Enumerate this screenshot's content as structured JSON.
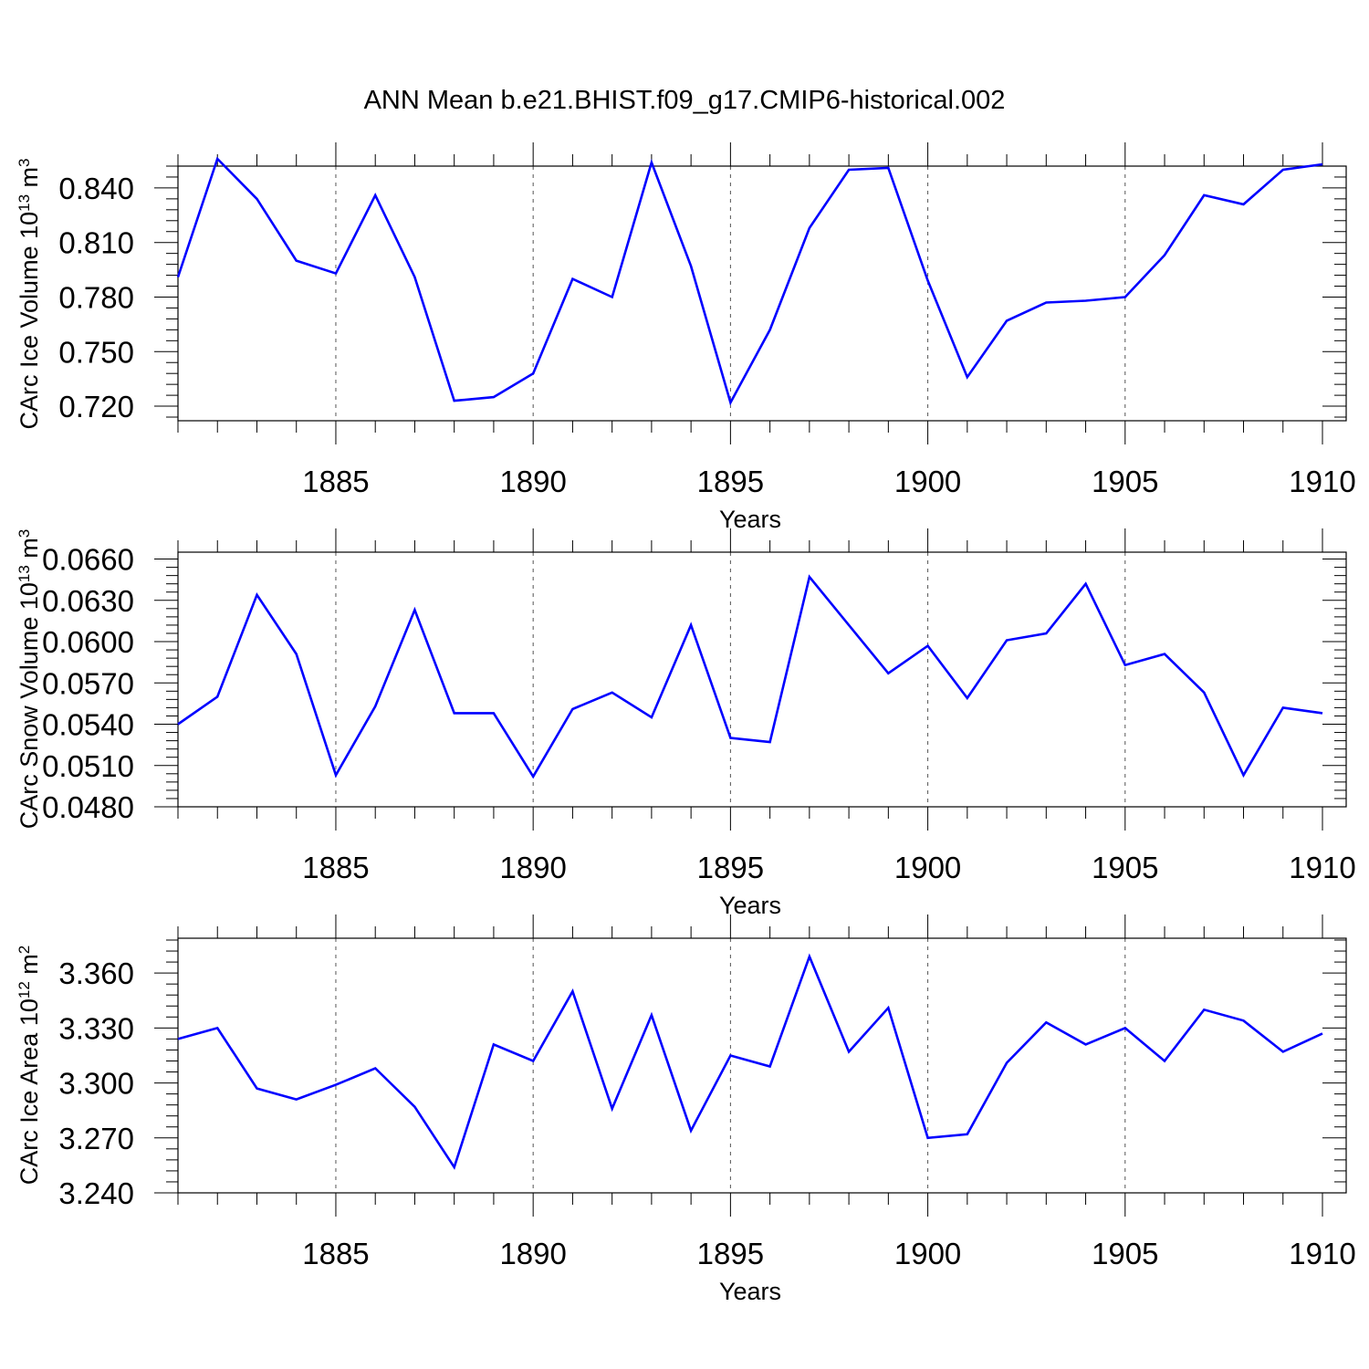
{
  "title": "ANN Mean b.e21.BHIST.f09_g17.CMIP6-historical.002",
  "line_color": "#0000ff",
  "chart_data": [
    {
      "type": "line",
      "ylabel_main": "CArc Ice Volume 10",
      "ylabel_sup": "13",
      "ylabel_unit": " m",
      "ylabel_unit_sup": "3",
      "xlabel": "Years",
      "xlim": [
        1881,
        1910
      ],
      "ylim": [
        0.712,
        0.852
      ],
      "yticks": [
        0.72,
        0.75,
        0.78,
        0.81,
        0.84
      ],
      "ytick_labels": [
        "0.720",
        "0.750",
        "0.780",
        "0.810",
        "0.840"
      ],
      "xticks": [
        1885,
        1890,
        1895,
        1900,
        1905,
        1910
      ],
      "xtick_labels": [
        "1885",
        "1890",
        "1895",
        "1900",
        "1905",
        "1910"
      ],
      "series": [
        {
          "name": "CArc Ice Volume",
          "x": [
            1881,
            1882,
            1883,
            1884,
            1885,
            1886,
            1887,
            1888,
            1889,
            1890,
            1891,
            1892,
            1893,
            1894,
            1895,
            1896,
            1897,
            1898,
            1899,
            1900,
            1901,
            1902,
            1903,
            1904,
            1905,
            1906,
            1907,
            1908,
            1909,
            1910
          ],
          "values": [
            0.791,
            0.856,
            0.834,
            0.8,
            0.793,
            0.836,
            0.791,
            0.723,
            0.725,
            0.738,
            0.79,
            0.78,
            0.854,
            0.797,
            0.722,
            0.762,
            0.818,
            0.85,
            0.851,
            0.789,
            0.736,
            0.767,
            0.777,
            0.778,
            0.78,
            0.803,
            0.836,
            0.831,
            0.85,
            0.853
          ]
        }
      ]
    },
    {
      "type": "line",
      "ylabel_main": "CArc Snow Volume 10",
      "ylabel_sup": "13",
      "ylabel_unit": " m",
      "ylabel_unit_sup": "3",
      "xlabel": "Years",
      "xlim": [
        1881,
        1910
      ],
      "ylim": [
        0.048,
        0.0665
      ],
      "yticks": [
        0.048,
        0.051,
        0.054,
        0.057,
        0.06,
        0.063,
        0.066
      ],
      "ytick_labels": [
        "0.0480",
        "0.0510",
        "0.0540",
        "0.0570",
        "0.0600",
        "0.0630",
        "0.0660"
      ],
      "xticks": [
        1885,
        1890,
        1895,
        1900,
        1905,
        1910
      ],
      "xtick_labels": [
        "1885",
        "1890",
        "1895",
        "1900",
        "1905",
        "1910"
      ],
      "series": [
        {
          "name": "CArc Snow Volume",
          "x": [
            1881,
            1882,
            1883,
            1884,
            1885,
            1886,
            1887,
            1888,
            1889,
            1890,
            1891,
            1892,
            1893,
            1894,
            1895,
            1896,
            1897,
            1898,
            1899,
            1900,
            1901,
            1902,
            1903,
            1904,
            1905,
            1906,
            1907,
            1908,
            1909,
            1910
          ],
          "values": [
            0.054,
            0.056,
            0.0634,
            0.0591,
            0.0503,
            0.0553,
            0.0623,
            0.0548,
            0.0548,
            0.0502,
            0.0551,
            0.0563,
            0.0545,
            0.0612,
            0.053,
            0.0527,
            0.0647,
            0.0612,
            0.0577,
            0.0597,
            0.0559,
            0.0601,
            0.0606,
            0.0642,
            0.0583,
            0.0591,
            0.0563,
            0.0503,
            0.0552,
            0.0548
          ]
        }
      ]
    },
    {
      "type": "line",
      "ylabel_main": "CArc Ice Area 10",
      "ylabel_sup": "12",
      "ylabel_unit": " m",
      "ylabel_unit_sup": "2",
      "xlabel": "Years",
      "xlim": [
        1881,
        1910
      ],
      "ylim": [
        3.24,
        3.379
      ],
      "yticks": [
        3.24,
        3.27,
        3.3,
        3.33,
        3.36
      ],
      "ytick_labels": [
        "3.240",
        "3.270",
        "3.300",
        "3.330",
        "3.360"
      ],
      "xticks": [
        1885,
        1890,
        1895,
        1900,
        1905,
        1910
      ],
      "xtick_labels": [
        "1885",
        "1890",
        "1895",
        "1900",
        "1905",
        "1910"
      ],
      "series": [
        {
          "name": "CArc Ice Area",
          "x": [
            1881,
            1882,
            1883,
            1884,
            1885,
            1886,
            1887,
            1888,
            1889,
            1890,
            1891,
            1892,
            1893,
            1894,
            1895,
            1896,
            1897,
            1898,
            1899,
            1900,
            1901,
            1902,
            1903,
            1904,
            1905,
            1906,
            1907,
            1908,
            1909,
            1910
          ],
          "values": [
            3.324,
            3.33,
            3.297,
            3.291,
            3.299,
            3.308,
            3.287,
            3.254,
            3.321,
            3.312,
            3.35,
            3.286,
            3.337,
            3.274,
            3.315,
            3.309,
            3.369,
            3.317,
            3.341,
            3.27,
            3.272,
            3.311,
            3.333,
            3.321,
            3.33,
            3.312,
            3.34,
            3.334,
            3.317,
            3.327
          ]
        }
      ]
    }
  ]
}
